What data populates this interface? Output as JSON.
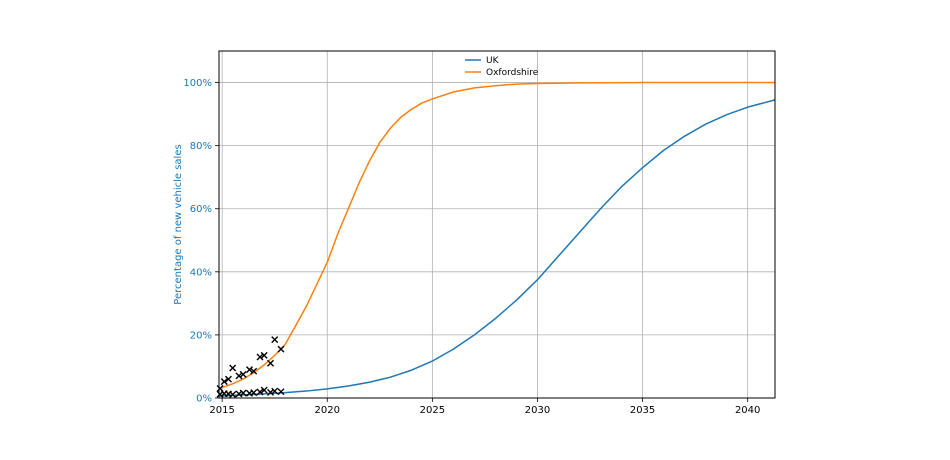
{
  "chart_data": {
    "type": "line",
    "title": "",
    "xlabel": "",
    "ylabel": "Percentage of new vehicle sales",
    "xlim": [
      2014.85,
      2041.3
    ],
    "ylim": [
      0,
      1.1
    ],
    "x_ticks": [
      2015,
      2020,
      2025,
      2030,
      2035,
      2040
    ],
    "x_tick_labels": [
      "2015",
      "2020",
      "2025",
      "2030",
      "2035",
      "2040"
    ],
    "y_ticks": [
      0,
      0.2,
      0.4,
      0.6,
      0.8,
      1.0
    ],
    "y_tick_labels": [
      "0%",
      "20%",
      "40%",
      "60%",
      "80%",
      "100%"
    ],
    "grid": true,
    "legend": "top-center",
    "colors": {
      "uk": "#1f77b4",
      "oxfordshire": "#ff7f0e",
      "markers": "#000000",
      "ylabel": "#1f77b4"
    },
    "series": [
      {
        "name": "UK",
        "x": [
          2014.85,
          2016,
          2017,
          2018,
          2019,
          2020,
          2021,
          2022,
          2023,
          2024,
          2025,
          2026,
          2027,
          2028,
          2029,
          2030,
          2031,
          2032,
          2033,
          2034,
          2035,
          2036,
          2037,
          2038,
          2039,
          2040,
          2041.3
        ],
        "y": [
          0.006,
          0.01,
          0.013,
          0.017,
          0.022,
          0.029,
          0.038,
          0.05,
          0.066,
          0.088,
          0.117,
          0.155,
          0.2,
          0.252,
          0.31,
          0.375,
          0.45,
          0.525,
          0.6,
          0.67,
          0.73,
          0.785,
          0.83,
          0.868,
          0.898,
          0.922,
          0.945
        ]
      },
      {
        "name": "Oxfordshire",
        "x": [
          2014.85,
          2015.5,
          2016,
          2016.5,
          2017,
          2017.5,
          2018,
          2018.5,
          2019,
          2019.5,
          2020,
          2020.5,
          2021,
          2021.5,
          2022,
          2022.5,
          2023,
          2023.5,
          2024,
          2024.5,
          2025,
          2026,
          2027,
          2028,
          2029,
          2030,
          2032,
          2035,
          2041.3
        ],
        "y": [
          0.03,
          0.045,
          0.06,
          0.08,
          0.105,
          0.135,
          0.17,
          0.23,
          0.29,
          0.36,
          0.43,
          0.52,
          0.6,
          0.68,
          0.75,
          0.81,
          0.855,
          0.89,
          0.915,
          0.935,
          0.948,
          0.97,
          0.983,
          0.99,
          0.995,
          0.997,
          0.999,
          1.0,
          1.0
        ]
      }
    ],
    "observations": {
      "marker": "x",
      "oxfordshire": {
        "x": [
          2014.9,
          2015.1,
          2015.3,
          2015.5,
          2015.8,
          2016.0,
          2016.3,
          2016.5,
          2016.8,
          2017.0,
          2017.3,
          2017.5,
          2017.8
        ],
        "y": [
          0.03,
          0.052,
          0.06,
          0.095,
          0.07,
          0.075,
          0.09,
          0.085,
          0.13,
          0.135,
          0.11,
          0.185,
          0.155
        ]
      },
      "uk": {
        "x": [
          2014.9,
          2015.1,
          2015.3,
          2015.5,
          2015.8,
          2016.0,
          2016.3,
          2016.5,
          2016.8,
          2017.0,
          2017.3,
          2017.5,
          2017.8
        ],
        "y": [
          0.012,
          0.014,
          0.013,
          0.011,
          0.013,
          0.016,
          0.015,
          0.017,
          0.019,
          0.025,
          0.018,
          0.022,
          0.02
        ]
      }
    }
  }
}
